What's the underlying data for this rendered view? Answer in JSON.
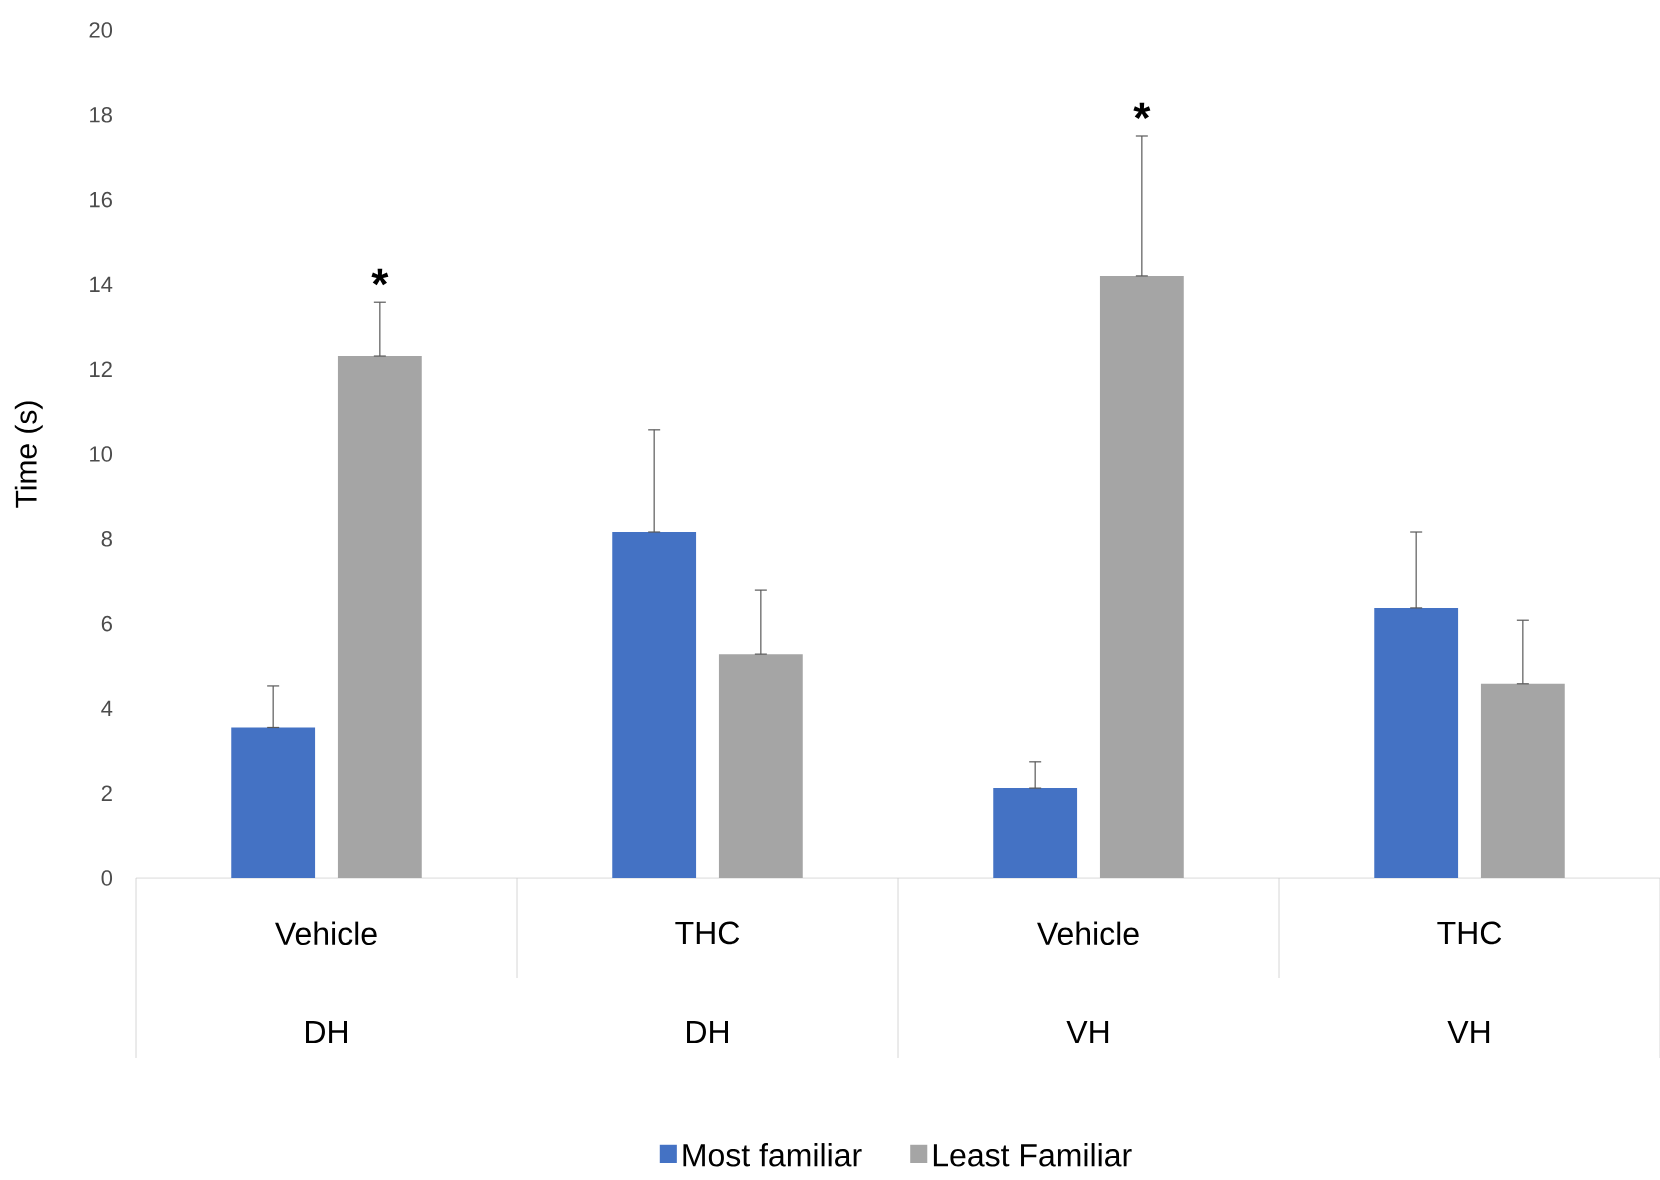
{
  "chart_data": {
    "type": "bar",
    "ylabel": "Time (s)",
    "categories": [
      "Vehicle",
      "THC",
      "Vehicle",
      "THC"
    ],
    "series": [
      {
        "name": "Most familiar",
        "color": "#4472c4",
        "values": [
          3.55,
          8.16,
          2.12,
          6.37
        ],
        "errors": [
          [
            3.55,
            4.53
          ],
          [
            8.16,
            10.57
          ],
          [
            2.12,
            2.74
          ],
          [
            6.37,
            8.16
          ]
        ]
      },
      {
        "name": "Least Familiar",
        "color": "#a5a5a5",
        "values": [
          12.31,
          5.28,
          14.2,
          4.58
        ],
        "errors": [
          [
            12.31,
            13.58
          ],
          [
            5.28,
            6.79
          ],
          [
            14.2,
            17.5
          ],
          [
            4.58,
            6.08
          ]
        ]
      }
    ],
    "annotations": [
      "DH",
      "DH",
      "VH",
      "VH",
      "*",
      "*"
    ],
    "ylim": [
      0,
      20
    ],
    "yticks": [
      0,
      2,
      4,
      6,
      8,
      10,
      12,
      14,
      16,
      18,
      20
    ],
    "grid": false,
    "legend": "bottom"
  }
}
